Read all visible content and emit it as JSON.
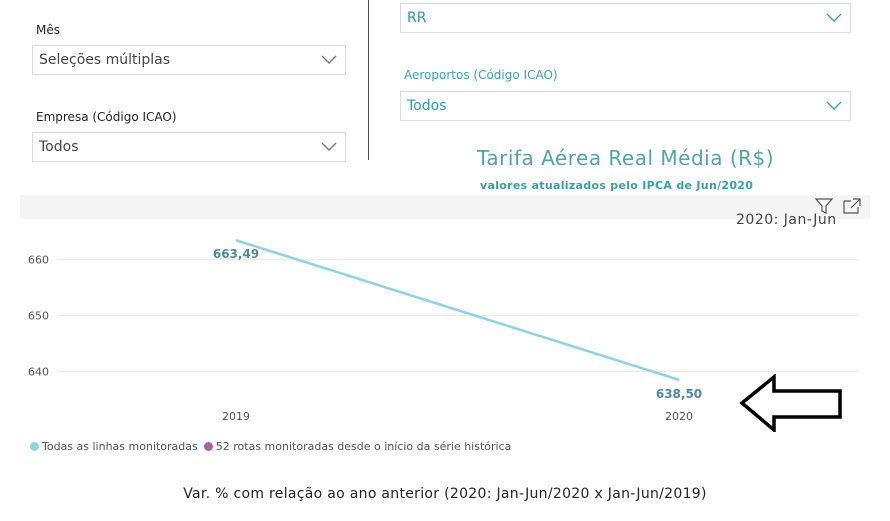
{
  "filters": {
    "mes": {
      "label": "Mês",
      "value": "Seleções múltiplas"
    },
    "empresa": {
      "label": "Empresa (Código ICAO)",
      "value": "Todos"
    },
    "uf": {
      "value": "RR"
    },
    "aeroportos": {
      "label": "Aeroportos (Código ICAO)",
      "value": "Todos"
    }
  },
  "visual": {
    "title": "Tarifa Aérea Real Média (R$)",
    "subtitle": "valores atualizados pelo IPCA de Jun/2020",
    "header_partial_text": "2020: Jan-Jun"
  },
  "chart_data": {
    "type": "line",
    "x": [
      "2019",
      "2020"
    ],
    "series": [
      {
        "name": "Todas as linhas monitoradas",
        "values": [
          663.49,
          638.5
        ],
        "color": "#8fd3e3"
      }
    ],
    "data_labels": [
      "663,49",
      "638,50"
    ],
    "y_ticks": [
      "640",
      "650",
      "660"
    ],
    "ylim": [
      634,
      668
    ],
    "grid": true
  },
  "legend": {
    "items": [
      {
        "label": "Todas as linhas monitoradas",
        "color": "#8fd3e3"
      },
      {
        "label": "52 rotas monitoradas desde o início da série histórica",
        "color": "#a5669a"
      }
    ]
  },
  "footer": {
    "text": "Var. % com relação ao ano anterior (2020: Jan-Jun/2020 x Jan-Jun/2019)"
  }
}
